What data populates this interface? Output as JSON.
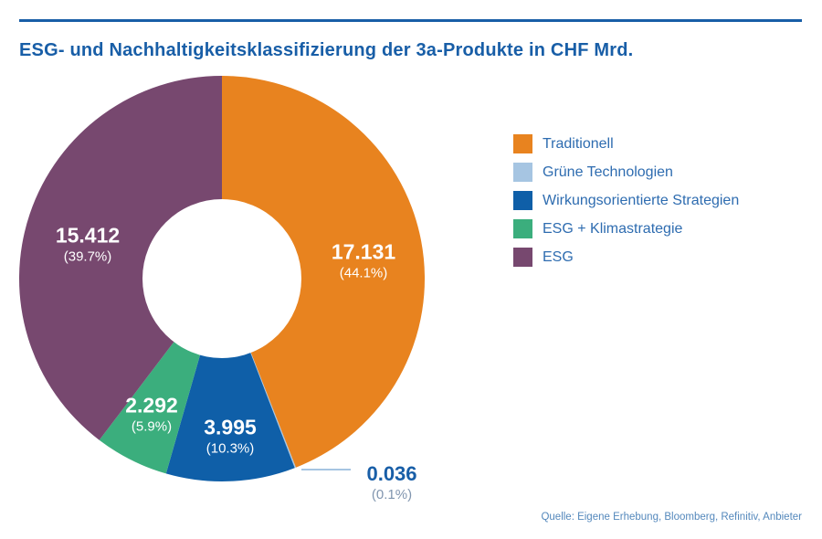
{
  "page": {
    "title": "ESG- und Nachhaltigkeitsklassifizierung der 3a-Produkte in CHF Mrd.",
    "source": "Quelle: Eigene Erhebung, Bloomberg, Refinitiv, Anbieter"
  },
  "colors": {
    "title_blue": "#185EA7",
    "legend_text_blue": "#2E6CB0",
    "source_blue": "#5488BC",
    "outside_value_blue": "#185EA7",
    "outside_pct_gray": "#8095AF",
    "leader_line": "#A6C5E2",
    "background": "#FFFFFF"
  },
  "chart_data": {
    "type": "pie",
    "subtype": "donut",
    "title": "ESG- und Nachhaltigkeitsklassifizierung der 3a-Produkte in CHF Mrd.",
    "unit": "CHF Mrd.",
    "legend_position": "right",
    "start_angle_deg": 0,
    "direction": "clockwise",
    "total": 38.866,
    "slices": [
      {
        "label": "Traditionell",
        "value": 17.131,
        "value_label": "17.131",
        "pct": 44.1,
        "pct_label": "(44.1%)",
        "color": "#E8831F",
        "label_placement": "inside"
      },
      {
        "label": "Grüne Technologien",
        "value": 0.036,
        "value_label": "0.036",
        "pct": 0.1,
        "pct_label": "(0.1%)",
        "color": "#A6C5E2",
        "label_placement": "outside"
      },
      {
        "label": "Wirkungsorientierte Strategien",
        "value": 3.995,
        "value_label": "3.995",
        "pct": 10.3,
        "pct_label": "(10.3%)",
        "color": "#0F5FA8",
        "label_placement": "inside"
      },
      {
        "label": "ESG + Klimastrategie",
        "value": 2.292,
        "value_label": "2.292",
        "pct": 5.9,
        "pct_label": "(5.9%)",
        "color": "#3BAE7D",
        "label_placement": "inside"
      },
      {
        "label": "ESG",
        "value": 15.412,
        "value_label": "15.412",
        "pct": 39.7,
        "pct_label": "(39.7%)",
        "color": "#77486F",
        "label_placement": "inside"
      }
    ]
  }
}
